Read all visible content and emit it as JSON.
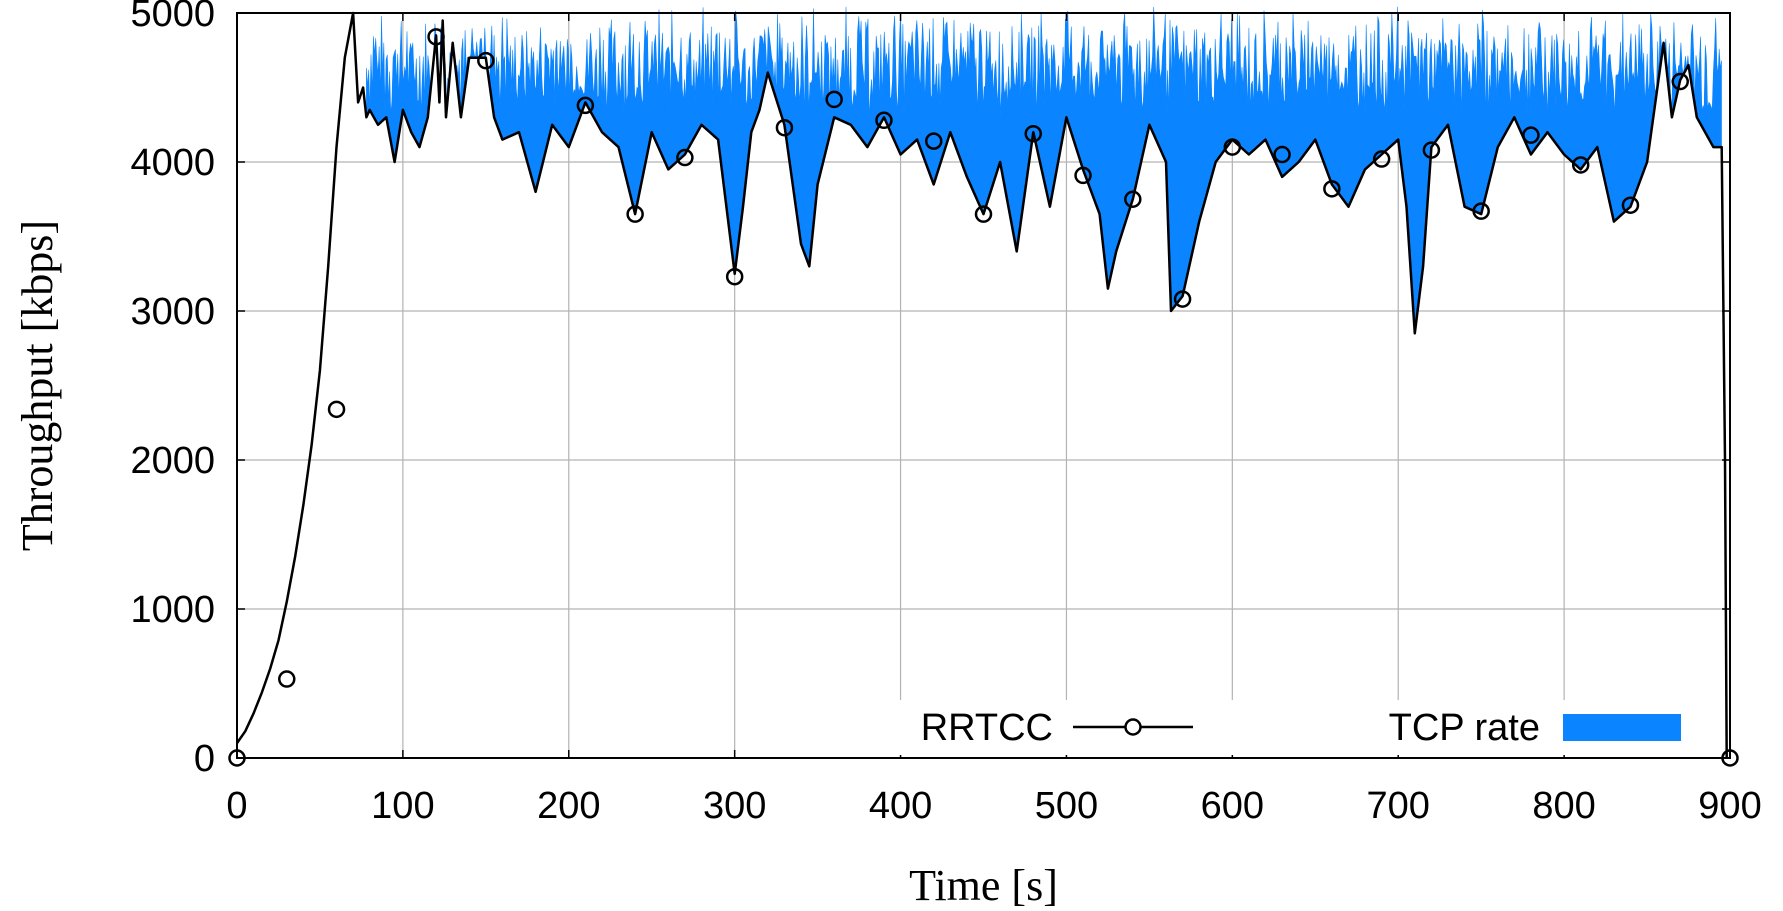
{
  "chart_data": {
    "type": "area",
    "title": "",
    "xlabel": "Time [s]",
    "ylabel": "Throughput [kbps]",
    "xlim": [
      0,
      900
    ],
    "ylim": [
      0,
      5000
    ],
    "xticks": [
      0,
      100,
      200,
      300,
      400,
      500,
      600,
      700,
      800,
      900
    ],
    "yticks": [
      0,
      1000,
      2000,
      3000,
      4000,
      5000
    ],
    "grid": true,
    "legend_position": "bottom-right, inside plot",
    "series": [
      {
        "name": "RRTCC",
        "style": "black line with open circle markers",
        "color": "#000000",
        "x": [
          0,
          5,
          10,
          15,
          20,
          25,
          30,
          35,
          40,
          45,
          50,
          55,
          60,
          65,
          70,
          73,
          76,
          78,
          80,
          85,
          90,
          95,
          100,
          105,
          110,
          115,
          120,
          122,
          124,
          126,
          130,
          135,
          140,
          150,
          155,
          160,
          170,
          180,
          190,
          200,
          210,
          220,
          230,
          240,
          250,
          260,
          270,
          280,
          290,
          300,
          305,
          310,
          315,
          320,
          330,
          340,
          345,
          350,
          360,
          370,
          380,
          390,
          400,
          410,
          420,
          430,
          440,
          450,
          460,
          470,
          480,
          490,
          500,
          510,
          520,
          525,
          530,
          540,
          550,
          560,
          563,
          570,
          580,
          590,
          600,
          610,
          620,
          630,
          640,
          650,
          660,
          670,
          680,
          690,
          700,
          705,
          710,
          715,
          720,
          730,
          740,
          750,
          760,
          770,
          780,
          790,
          800,
          810,
          820,
          830,
          840,
          850,
          860,
          865,
          870,
          875,
          880,
          890,
          895,
          897,
          898
        ],
        "y": [
          100,
          180,
          300,
          440,
          600,
          790,
          1050,
          1350,
          1700,
          2100,
          2600,
          3300,
          4100,
          4700,
          5000,
          4400,
          4500,
          4300,
          4350,
          4250,
          4300,
          4000,
          4350,
          4200,
          4100,
          4300,
          4850,
          4400,
          4950,
          4300,
          4800,
          4300,
          4700,
          4700,
          4300,
          4150,
          4200,
          3800,
          4250,
          4100,
          4400,
          4200,
          4100,
          3650,
          4200,
          3950,
          4050,
          4250,
          4150,
          3250,
          3700,
          4200,
          4350,
          4600,
          4250,
          3450,
          3300,
          3850,
          4300,
          4250,
          4100,
          4300,
          4050,
          4150,
          3850,
          4200,
          3900,
          3650,
          4000,
          3400,
          4200,
          3700,
          4300,
          3950,
          3650,
          3150,
          3400,
          3750,
          4250,
          4000,
          3000,
          3100,
          3600,
          4000,
          4150,
          4050,
          4150,
          3900,
          4000,
          4150,
          3850,
          3700,
          3950,
          4050,
          4150,
          3700,
          2850,
          3300,
          4100,
          4250,
          3700,
          3650,
          4100,
          4300,
          4050,
          4200,
          4050,
          3950,
          4100,
          3600,
          3700,
          4000,
          4800,
          4300,
          4550,
          4650,
          4300,
          4100,
          4100,
          2000,
          0
        ],
        "markers_x": [
          0,
          30,
          60,
          120,
          150,
          210,
          240,
          270,
          300,
          330,
          360,
          390,
          420,
          450,
          480,
          510,
          540,
          570,
          600,
          630,
          660,
          690,
          720,
          750,
          780,
          810,
          840,
          870,
          900
        ],
        "markers_y": [
          0,
          530,
          2340,
          4840,
          4680,
          4380,
          3650,
          4030,
          3230,
          4230,
          4420,
          4280,
          4140,
          3650,
          4190,
          3910,
          3750,
          3080,
          4100,
          4050,
          3820,
          4020,
          4080,
          3670,
          4180,
          3980,
          3710,
          4540,
          0
        ]
      },
      {
        "name": "TCP rate",
        "style": "filled area between RRTCC and the total rate (TCP rate stacked on top)",
        "color": "#0a84ff",
        "x_range": [
          78,
          895
        ],
        "top_envelope_kbps": [
          4500,
          5050
        ]
      }
    ]
  }
}
